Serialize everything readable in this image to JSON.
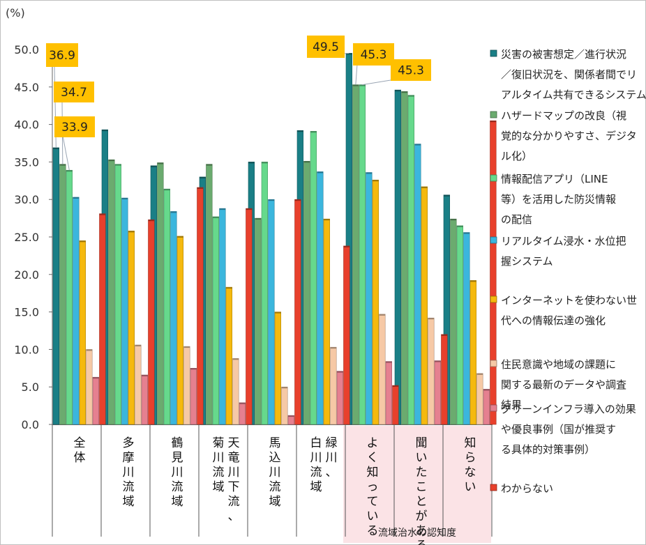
{
  "chart_data": {
    "type": "bar",
    "unit_label": "(%)",
    "ylim": [
      0,
      50
    ],
    "yticks": [
      "0.0",
      "5.0",
      "10.0",
      "15.0",
      "20.0",
      "25.0",
      "30.0",
      "35.0",
      "40.0",
      "45.0",
      "50.0"
    ],
    "categories": [
      [
        "全",
        "体"
      ],
      [
        "多",
        "摩",
        "川",
        "流",
        "域"
      ],
      [
        "鶴",
        "見",
        "川",
        "流",
        "域"
      ],
      [
        "天竜川下流、",
        "菊川流域"
      ],
      [
        "馬",
        "込",
        "川",
        "流",
        "域"
      ],
      [
        "緑川、",
        "白川流域"
      ],
      [
        "よ",
        "く",
        "知",
        "っ",
        "て",
        "い",
        "る"
      ],
      [
        "聞",
        "い",
        "た",
        "こ",
        "と",
        "が",
        "あ",
        "る"
      ],
      [
        "知",
        "ら",
        "な",
        "い"
      ]
    ],
    "group_title": "流域治水の認知度",
    "group_range": [
      6,
      8
    ],
    "series": [
      {
        "name": "災害の被害想定／進行状況／復旧状況を、関係者間でリアルタイム共有できるシステム",
        "legend_lines": [
          "災害の被害想定／進行状況",
          "／復旧状況を、関係者間でリ",
          "アルタイム共有できるシステム"
        ],
        "color": "#1a7f86",
        "values": [
          36.9,
          39.3,
          34.5,
          33.0,
          35.0,
          39.2,
          49.5,
          44.6,
          30.6
        ]
      },
      {
        "name": "ハザードマップの改良（視覚的な分かりやすさ、デジタル化）",
        "legend_lines": [
          "ハザードマップの改良（視",
          "覚的な分かりやすさ、デジタ",
          "ル化）"
        ],
        "color": "#6bab6f",
        "values": [
          34.7,
          35.3,
          34.9,
          34.7,
          27.5,
          35.1,
          45.3,
          44.4,
          27.4
        ]
      },
      {
        "name": "情報配信アプリ（LINE等）を活用した防災情報の配信",
        "legend_lines": [
          "情報配信アプリ（LINE",
          "等）を活用した防災情報",
          "の配信"
        ],
        "color": "#66d98c",
        "values": [
          33.9,
          34.7,
          31.4,
          27.7,
          35.0,
          39.1,
          45.3,
          43.9,
          26.5
        ]
      },
      {
        "name": "リアルタイム浸水・水位把握システム",
        "legend_lines": [
          "リアルタイム浸水・水位把",
          "握システム"
        ],
        "color": "#3bb6dd",
        "values": [
          30.3,
          30.2,
          28.4,
          28.8,
          30.0,
          33.7,
          33.6,
          37.4,
          25.6
        ]
      },
      {
        "name": "インターネットを使わない世代への情報伝達の強化",
        "legend_lines": [
          "インターネットを使わない世",
          "代への情報伝達の強化"
        ],
        "color": "#f5b90e",
        "values": [
          24.5,
          25.8,
          25.1,
          18.3,
          15.0,
          27.4,
          32.6,
          31.7,
          19.2
        ]
      },
      {
        "name": "住民意識や地域の課題に関する最新のデータや調査結果",
        "legend_lines": [
          "住民意識や地域の課題に",
          "関する最新のデータや調査",
          "結果"
        ],
        "color": "#f6c9a6",
        "values": [
          10.0,
          10.6,
          10.4,
          8.8,
          5.0,
          10.3,
          14.7,
          14.2,
          6.8
        ]
      },
      {
        "name": "グリーンインフラ導入の効果や優良事例（国が推奨する具体的対策事例）",
        "legend_lines": [
          "グリーンインフラ導入の効果",
          "や優良事例（国が推奨す",
          "る具体的対策事例）"
        ],
        "color": "#e58090",
        "values": [
          6.3,
          6.6,
          7.5,
          2.9,
          1.2,
          7.1,
          8.4,
          8.5,
          4.7
        ]
      },
      {
        "name": "わからない",
        "legend_lines": [
          "わからない"
        ],
        "color": "#e8402c",
        "values": [
          28.1,
          27.3,
          31.6,
          28.8,
          30.0,
          23.8,
          5.2,
          12.0,
          40.5
        ]
      }
    ],
    "callouts": [
      {
        "label": "36.9",
        "category": 0,
        "series": 0
      },
      {
        "label": "34.7",
        "category": 0,
        "series": 1
      },
      {
        "label": "33.9",
        "category": 0,
        "series": 2
      },
      {
        "label": "49.5",
        "category": 6,
        "series": 0
      },
      {
        "label": "45.3",
        "category": 6,
        "series": 1
      },
      {
        "label": "45.3",
        "category": 6,
        "series": 2
      }
    ],
    "callout_color": "#ffc000",
    "highlight_color": "#fbe3e6",
    "grid": false,
    "legend_position": "right"
  }
}
